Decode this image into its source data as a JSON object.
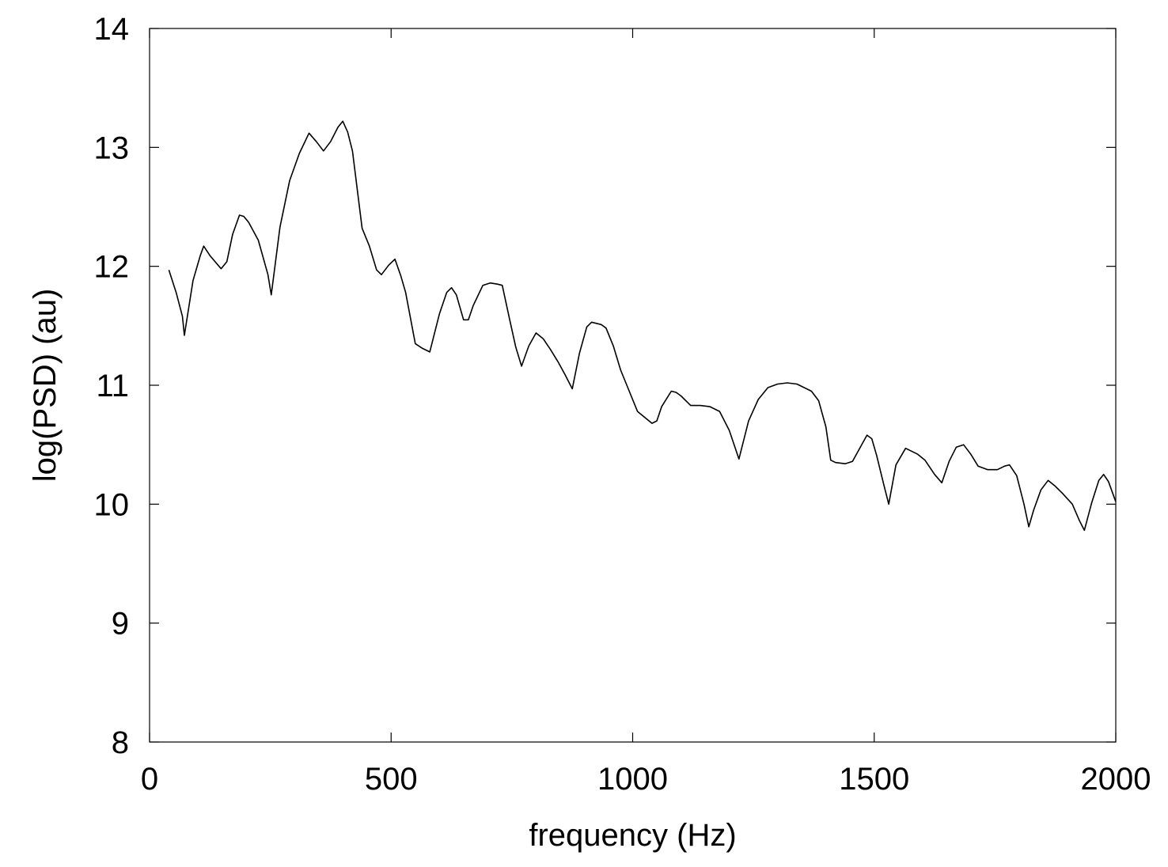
{
  "chart_data": {
    "type": "line",
    "title": "",
    "xlabel": "frequency (Hz)",
    "ylabel": "log(PSD) (au)",
    "xlim": [
      0,
      2000
    ],
    "ylim": [
      8,
      14
    ],
    "x_ticks": [
      "0",
      "500",
      "1000",
      "1500",
      "2000"
    ],
    "y_ticks": [
      "8",
      "9",
      "10",
      "11",
      "12",
      "13",
      "14"
    ],
    "grid": false,
    "legend": "none",
    "line_color": "#000000",
    "series": [
      {
        "x": [
          40,
          55,
          68,
          72,
          90,
          105,
          112,
          125,
          148,
          160,
          172,
          186,
          195,
          205,
          225,
          245,
          252,
          270,
          290,
          310,
          330,
          345,
          360,
          375,
          390,
          400,
          410,
          420,
          440,
          455,
          470,
          480,
          495,
          508,
          520,
          530,
          550,
          565,
          580,
          600,
          615,
          625,
          635,
          650,
          660,
          670,
          690,
          705,
          720,
          730,
          745,
          758,
          770,
          785,
          800,
          815,
          830,
          845,
          860,
          875,
          890,
          905,
          915,
          925,
          935,
          945,
          960,
          975,
          995,
          1010,
          1040,
          1050,
          1060,
          1080,
          1090,
          1100,
          1120,
          1140,
          1160,
          1180,
          1200,
          1220,
          1240,
          1260,
          1280,
          1300,
          1320,
          1340,
          1350,
          1370,
          1385,
          1400,
          1410,
          1420,
          1440,
          1455,
          1470,
          1485,
          1495,
          1505,
          1520,
          1530,
          1545,
          1565,
          1575,
          1590,
          1605,
          1625,
          1640,
          1655,
          1670,
          1685,
          1700,
          1715,
          1735,
          1755,
          1770,
          1780,
          1795,
          1810,
          1820,
          1830,
          1845,
          1860,
          1875,
          1890,
          1910,
          1925,
          1935,
          1950,
          1965,
          1975,
          1985,
          2000
        ],
        "y": [
          11.97,
          11.78,
          11.58,
          11.42,
          11.88,
          12.09,
          12.17,
          12.09,
          11.98,
          12.04,
          12.27,
          12.43,
          12.42,
          12.37,
          12.22,
          11.93,
          11.76,
          12.33,
          12.72,
          12.95,
          13.12,
          13.05,
          12.97,
          13.05,
          13.17,
          13.22,
          13.13,
          12.97,
          12.32,
          12.17,
          11.97,
          11.93,
          12.01,
          12.06,
          11.92,
          11.78,
          11.35,
          11.31,
          11.28,
          11.6,
          11.78,
          11.82,
          11.76,
          11.55,
          11.55,
          11.67,
          11.84,
          11.86,
          11.85,
          11.84,
          11.56,
          11.32,
          11.16,
          11.33,
          11.44,
          11.39,
          11.3,
          11.2,
          11.09,
          10.97,
          11.27,
          11.49,
          11.53,
          11.52,
          11.51,
          11.48,
          11.33,
          11.13,
          10.93,
          10.78,
          10.68,
          10.7,
          10.82,
          10.95,
          10.94,
          10.91,
          10.83,
          10.83,
          10.82,
          10.78,
          10.62,
          10.38,
          10.7,
          10.88,
          10.98,
          11.01,
          11.02,
          11.01,
          10.99,
          10.95,
          10.87,
          10.65,
          10.37,
          10.35,
          10.34,
          10.36,
          10.47,
          10.58,
          10.55,
          10.41,
          10.16,
          10.0,
          10.33,
          10.47,
          10.45,
          10.42,
          10.37,
          10.25,
          10.18,
          10.36,
          10.48,
          10.5,
          10.42,
          10.32,
          10.29,
          10.29,
          10.32,
          10.33,
          10.24,
          10.0,
          9.81,
          9.95,
          10.12,
          10.2,
          10.15,
          10.09,
          10.0,
          9.86,
          9.78,
          10.01,
          10.2,
          10.25,
          10.19,
          10.02
        ]
      }
    ]
  }
}
